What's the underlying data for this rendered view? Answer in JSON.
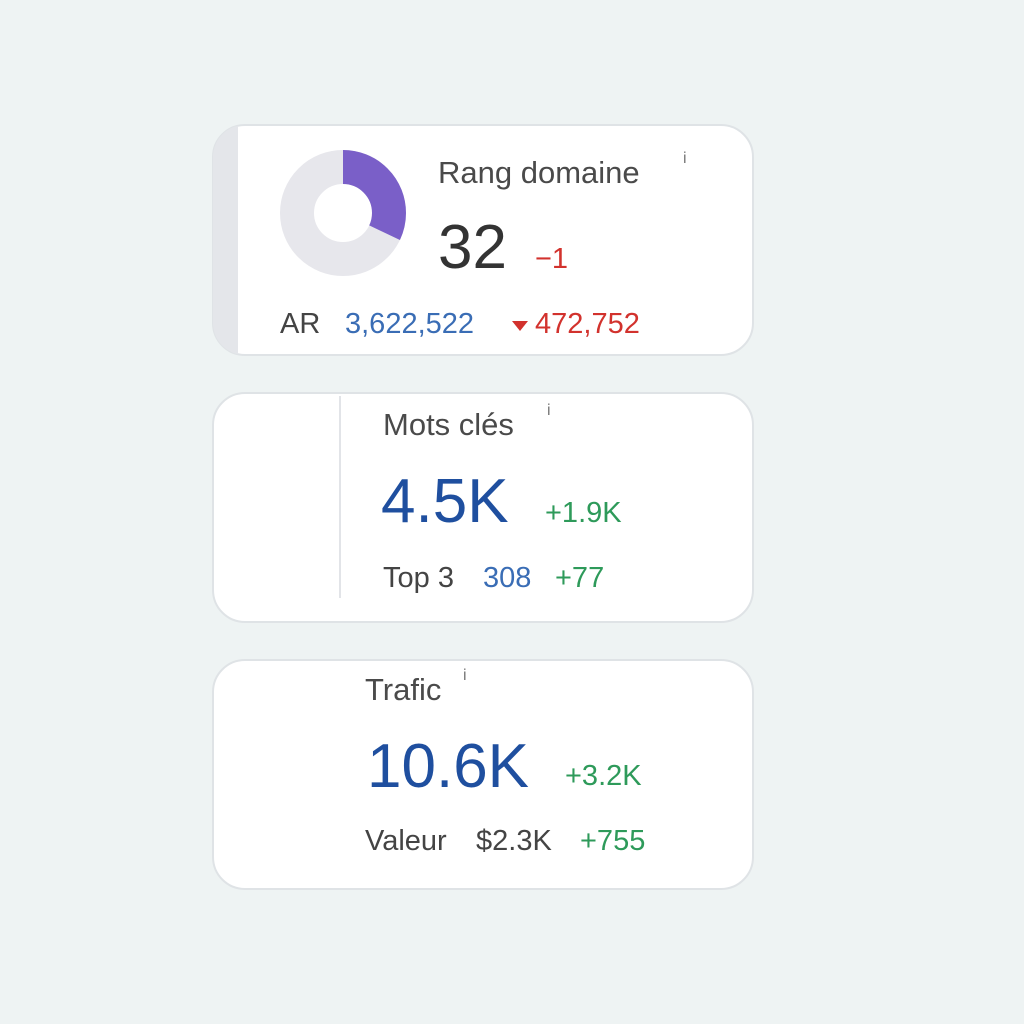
{
  "cards": [
    {
      "title": "Rang domaine",
      "info": "i",
      "value": 32,
      "delta": "−1",
      "sub_label": "AR",
      "sub_value": "3,622,522",
      "sub_delta": "472,752"
    },
    {
      "title": "Mots clés",
      "info": "i",
      "value": "4.5K",
      "delta": "+1.9K",
      "sub_label": "Top 3",
      "sub_value": "308",
      "sub_delta": "+77"
    },
    {
      "title": "Trafic",
      "info": "i",
      "value": "10.6K",
      "delta": "+3.2K",
      "sub_label": "Valeur",
      "sub_value": "$2.3K",
      "sub_delta": "+755"
    }
  ]
}
